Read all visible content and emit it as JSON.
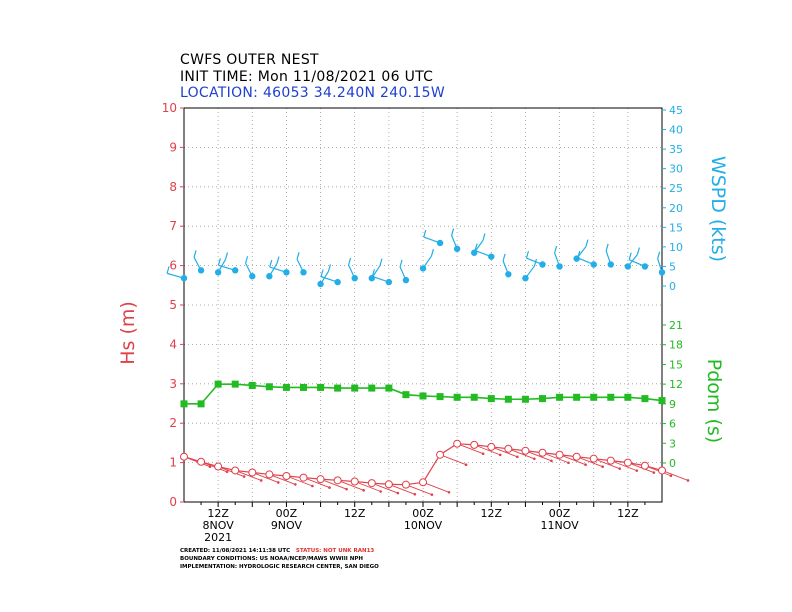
{
  "header": {
    "title": "CWFS OUTER NEST",
    "init_time": "INIT TIME: Mon 11/08/2021 06 UTC",
    "location_prefix": "LOCATION:",
    "location_value": "46053 34.240N 240.15W"
  },
  "footer": {
    "created": "CREATED: 11/08/2021 14:11:38 UTC",
    "status": "STATUS: NOT UNK RAN13",
    "boundary": "BOUNDARY CONDITIONS: US NOAA/NCEP/MAWS WWIII NPH",
    "implementation": "IMPLEMENTATION: HYDROLOGIC RESEARCH CENTER, SAN DIEGO"
  },
  "colors": {
    "hs": "#e0404a",
    "wspd": "#22aee6",
    "pdom": "#22bb22",
    "location": "#1f3fcf"
  },
  "chart_data": {
    "type": "line",
    "x_unit": "hours from 2021-11-08 06Z",
    "x_tick_labels": [
      {
        "hour": 6,
        "lines": [
          "12Z",
          "8NOV",
          "2021"
        ]
      },
      {
        "hour": 18,
        "lines": [
          "00Z",
          "9NOV"
        ]
      },
      {
        "hour": 30,
        "lines": [
          "12Z"
        ]
      },
      {
        "hour": 42,
        "lines": [
          "00Z",
          "10NOV"
        ]
      },
      {
        "hour": 54,
        "lines": [
          "12Z"
        ]
      },
      {
        "hour": 66,
        "lines": [
          "00Z",
          "11NOV"
        ]
      },
      {
        "hour": 78,
        "lines": [
          "12Z"
        ]
      }
    ],
    "xlim": [
      0,
      84
    ],
    "grid": true,
    "hs": {
      "ylabel": "Hs (m)",
      "ylim": [
        0,
        10
      ],
      "ticks": [
        "0",
        "1",
        "2",
        "3",
        "4",
        "5",
        "6",
        "7",
        "8",
        "9",
        "10"
      ],
      "x": [
        0,
        3,
        6,
        9,
        12,
        15,
        18,
        21,
        24,
        27,
        30,
        33,
        36,
        39,
        42,
        45,
        48,
        51,
        54,
        57,
        60,
        63,
        66,
        69,
        72,
        75,
        78,
        81,
        84
      ],
      "values": [
        1.15,
        1.02,
        0.9,
        0.8,
        0.75,
        0.7,
        0.66,
        0.62,
        0.58,
        0.55,
        0.52,
        0.48,
        0.45,
        0.44,
        0.5,
        1.2,
        1.48,
        1.45,
        1.4,
        1.35,
        1.3,
        1.25,
        1.2,
        1.15,
        1.1,
        1.05,
        1.0,
        0.92,
        0.8
      ]
    },
    "wspd": {
      "ylabel": "WSPD (kts)",
      "ylim": [
        0,
        45
      ],
      "ticks": [
        "0",
        "5",
        "10",
        "15",
        "20",
        "25",
        "30",
        "35",
        "40",
        "45"
      ],
      "x": [
        0,
        3,
        6,
        9,
        12,
        15,
        18,
        21,
        24,
        27,
        30,
        33,
        36,
        39,
        42,
        45,
        48,
        51,
        54,
        57,
        60,
        63,
        66,
        69,
        72,
        75,
        78,
        81,
        84
      ],
      "values": [
        2,
        4,
        3.5,
        4,
        2.5,
        2.5,
        3.5,
        3.5,
        0.5,
        1,
        2,
        2,
        1,
        1.5,
        4.5,
        11,
        9.5,
        8.5,
        7.5,
        3,
        2,
        5.5,
        5,
        7,
        5.5,
        5.5,
        5,
        5,
        3.5
      ]
    },
    "pdom": {
      "ylabel": "Pdom (s)",
      "ylim": [
        0,
        21
      ],
      "ticks": [
        "0",
        "3",
        "6",
        "9",
        "12",
        "15",
        "18",
        "21"
      ],
      "x": [
        0,
        3,
        6,
        9,
        12,
        15,
        18,
        21,
        24,
        27,
        30,
        33,
        36,
        39,
        42,
        45,
        48,
        51,
        54,
        57,
        60,
        63,
        66,
        69,
        72,
        75,
        78,
        81,
        84
      ],
      "values": [
        9,
        9,
        12,
        12,
        11.8,
        11.6,
        11.5,
        11.5,
        11.5,
        11.4,
        11.4,
        11.4,
        11.4,
        10.4,
        10.2,
        10.1,
        10.0,
        10.0,
        9.8,
        9.7,
        9.7,
        9.8,
        10,
        10,
        10,
        10,
        10,
        9.8,
        9.5
      ]
    }
  }
}
